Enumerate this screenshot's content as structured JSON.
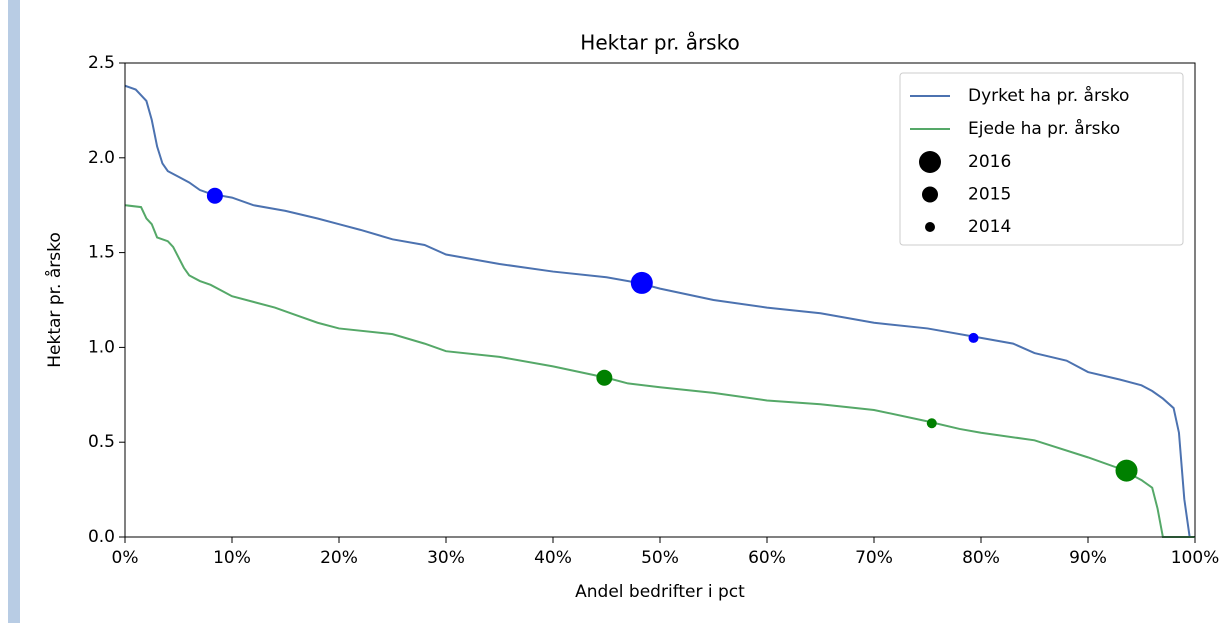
{
  "chart_data": {
    "type": "line",
    "title": "Hektar pr. årsko",
    "xlabel": "Andel bedrifter i pct",
    "ylabel": "Hektar pr. årsko",
    "xlim": [
      0,
      100
    ],
    "ylim": [
      0,
      2.5
    ],
    "xticks": [
      {
        "value": 0,
        "label": "0%"
      },
      {
        "value": 10,
        "label": "10%"
      },
      {
        "value": 20,
        "label": "20%"
      },
      {
        "value": 30,
        "label": "30%"
      },
      {
        "value": 40,
        "label": "40%"
      },
      {
        "value": 50,
        "label": "50%"
      },
      {
        "value": 60,
        "label": "60%"
      },
      {
        "value": 70,
        "label": "70%"
      },
      {
        "value": 80,
        "label": "80%"
      },
      {
        "value": 90,
        "label": "90%"
      },
      {
        "value": 100,
        "label": "100%"
      }
    ],
    "yticks": [
      {
        "value": 0,
        "label": "0.0"
      },
      {
        "value": 0.5,
        "label": "0.5"
      },
      {
        "value": 1,
        "label": "1.0"
      },
      {
        "value": 1.5,
        "label": "1.5"
      },
      {
        "value": 2,
        "label": "2.0"
      },
      {
        "value": 2.5,
        "label": "2.5"
      }
    ],
    "legend": "upper right",
    "series": [
      {
        "name": "Dyrket ha pr. årsko",
        "color": "#4c72b0",
        "x": [
          0,
          1,
          1.5,
          2,
          2.5,
          3,
          3.5,
          4,
          5,
          6,
          7,
          8,
          10,
          12,
          15,
          18,
          20,
          22,
          25,
          28,
          30,
          35,
          40,
          45,
          48,
          50,
          55,
          60,
          65,
          70,
          75,
          80,
          83,
          85,
          88,
          90,
          93,
          95,
          96,
          97,
          98,
          98.5,
          99,
          99.5,
          100
        ],
        "values": [
          2.38,
          2.36,
          2.33,
          2.3,
          2.2,
          2.06,
          1.97,
          1.93,
          1.9,
          1.87,
          1.83,
          1.81,
          1.79,
          1.75,
          1.72,
          1.68,
          1.65,
          1.62,
          1.57,
          1.54,
          1.49,
          1.44,
          1.4,
          1.37,
          1.34,
          1.31,
          1.25,
          1.21,
          1.18,
          1.13,
          1.1,
          1.05,
          1.02,
          0.97,
          0.93,
          0.87,
          0.83,
          0.8,
          0.77,
          0.73,
          0.68,
          0.55,
          0.2,
          0,
          0
        ]
      },
      {
        "name": "Ejede ha pr. årsko",
        "color": "#55a868",
        "x": [
          0,
          1.5,
          2,
          2.5,
          3,
          4,
          4.5,
          5.5,
          6,
          7,
          8,
          9,
          10,
          12,
          14,
          16,
          18,
          20,
          25,
          28,
          30,
          35,
          40,
          45,
          47,
          50,
          55,
          60,
          65,
          70,
          75,
          78,
          80,
          85,
          90,
          93,
          95,
          96,
          96.5,
          97,
          100
        ],
        "values": [
          1.75,
          1.74,
          1.68,
          1.65,
          1.58,
          1.56,
          1.53,
          1.42,
          1.38,
          1.35,
          1.33,
          1.3,
          1.27,
          1.24,
          1.21,
          1.17,
          1.13,
          1.1,
          1.07,
          1.02,
          0.98,
          0.95,
          0.9,
          0.84,
          0.81,
          0.79,
          0.76,
          0.72,
          0.7,
          0.67,
          0.61,
          0.57,
          0.55,
          0.51,
          0.42,
          0.36,
          0.3,
          0.26,
          0.15,
          0,
          0
        ]
      }
    ],
    "sizes": [
      {
        "name": "2016",
        "size": 11
      },
      {
        "name": "2015",
        "size": 8
      },
      {
        "name": "2014",
        "size": 5
      }
    ],
    "point_colors": [
      "#0000ff",
      "#008000"
    ],
    "points": [
      {
        "series": 0,
        "size": 0,
        "x": 48.3,
        "y": 1.34
      },
      {
        "series": 0,
        "size": 1,
        "x": 8.4,
        "y": 1.8
      },
      {
        "series": 0,
        "size": 2,
        "x": 79.3,
        "y": 1.05
      },
      {
        "series": 1,
        "size": 0,
        "x": 93.6,
        "y": 0.35
      },
      {
        "series": 1,
        "size": 1,
        "x": 44.8,
        "y": 0.84
      },
      {
        "series": 1,
        "size": 2,
        "x": 75.4,
        "y": 0.6
      }
    ]
  }
}
